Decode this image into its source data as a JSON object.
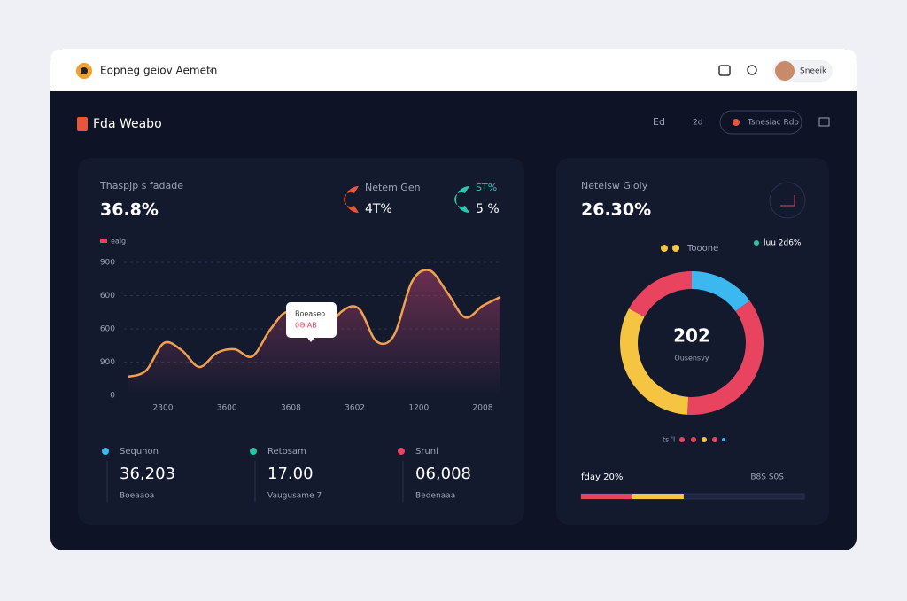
{
  "topbar": {
    "title": "Eopneg geiov Aemetn",
    "user": "Sneeik"
  },
  "header": {
    "brand": "Fda Weabo",
    "nav": [
      "Ed",
      "2d"
    ],
    "button": "Tsnesiac Rdo"
  },
  "main_card": {
    "title": "Thaspjp s fadade",
    "value": "36.8%",
    "kpis": [
      {
        "label": "Netem Gen",
        "value": "4T%"
      },
      {
        "label": "ST%",
        "value": "5 %"
      }
    ],
    "legend": "ealg",
    "chart": {
      "type": "line",
      "ylim": [
        0,
        1200
      ],
      "y_labels": [
        "0",
        "900",
        "600",
        "600",
        "900"
      ],
      "x_labels": [
        "2300",
        "3600",
        "3608",
        "3602",
        "1200",
        "2008"
      ],
      "color": "#f0a050",
      "values": [
        168,
        224,
        472,
        408,
        256,
        384,
        416,
        352,
        592,
        752,
        568,
        544,
        752,
        784,
        488,
        544,
        1024,
        1128,
        928,
        704,
        808,
        888
      ]
    },
    "tooltip": {
      "title": "Boeaseo",
      "value": "0ƏIAB"
    },
    "stats": [
      {
        "label": "Sequnon",
        "value": "36,203",
        "sub": "Boeaaoa",
        "color": "#3bb8f0"
      },
      {
        "label": "Retosam",
        "value": "17.00",
        "sub": "Vaugusame 7",
        "color": "#2ec4a0"
      },
      {
        "label": "Sruni",
        "value": "06,008",
        "sub": "Bedenaaa",
        "color": "#e8445f"
      }
    ]
  },
  "side_card": {
    "title": "Netelsw Gioly",
    "value": "26.30%",
    "legend": [
      "Tooone",
      "luu 2d6%"
    ],
    "chart": {
      "type": "pie",
      "values": [
        15,
        36,
        32,
        17
      ],
      "colors": [
        "#3bb8f0",
        "#e8445f",
        "#f5c542",
        "#e8445f"
      ],
      "center_value": "202",
      "center_label": "Ousensvy"
    },
    "dots_label": "ts 'l",
    "progress": {
      "label": "fday 20%",
      "right_label": "B8S S0S",
      "max": 100,
      "values": [
        23,
        23
      ],
      "colors": [
        "#e8445f",
        "#f5c542"
      ]
    }
  }
}
